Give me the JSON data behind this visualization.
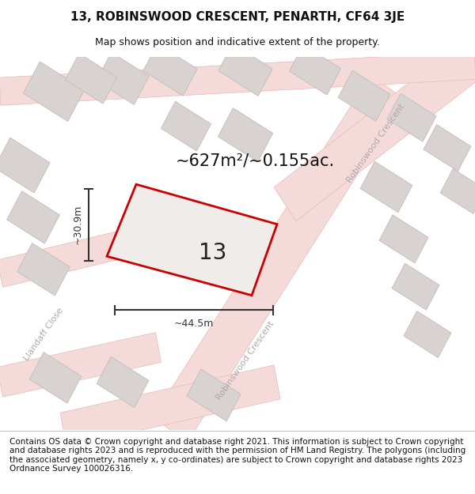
{
  "title": "13, ROBINSWOOD CRESCENT, PENARTH, CF64 3JE",
  "subtitle": "Map shows position and indicative extent of the property.",
  "footer": "Contains OS data © Crown copyright and database right 2021. This information is subject to Crown copyright and database rights 2023 and is reproduced with the permission of HM Land Registry. The polygons (including the associated geometry, namely x, y co-ordinates) are subject to Crown copyright and database rights 2023 Ordnance Survey 100026316.",
  "area_label": "~627m²/~0.155ac.",
  "property_number": "13",
  "dim_width": "~44.5m",
  "dim_height": "~30.9m",
  "street_label_rc1": "Robinswood Crescent",
  "street_label_rc2": "Robinswood Crescent",
  "street_label_lc": "Llandaff Close",
  "map_bg": "#f7f4f2",
  "road_fill": "#f5dada",
  "road_edge": "#e8b8b8",
  "block_fill": "#d8d2d0",
  "block_edge": "#c8c0be",
  "property_fill": "#f0ecea",
  "property_outline": "#cc0000",
  "dim_color": "#333333",
  "text_color": "#111111",
  "street_color": "#b0a8a8",
  "title_fontsize": 11,
  "subtitle_fontsize": 9,
  "footer_fontsize": 7.5,
  "area_fontsize": 15,
  "number_fontsize": 20,
  "dim_fontsize": 9,
  "street_fontsize": 8
}
